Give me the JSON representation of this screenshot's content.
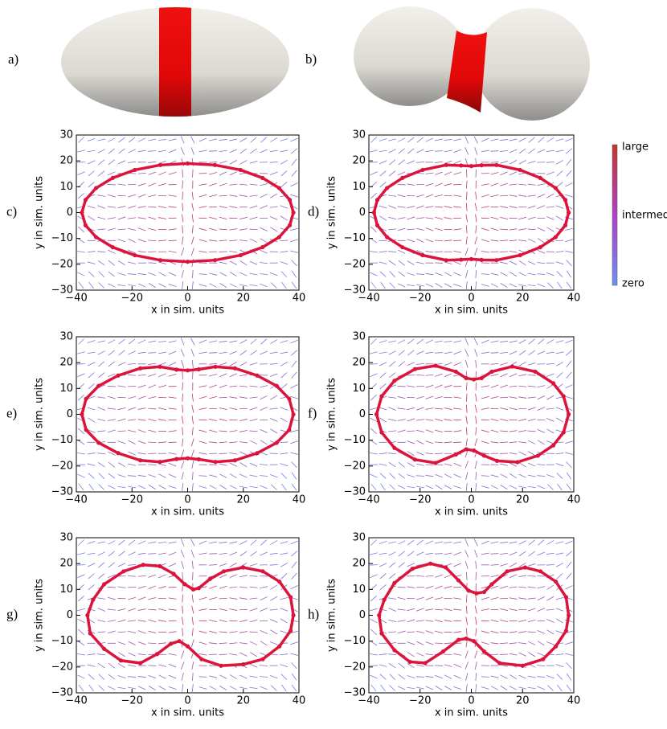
{
  "panels": [
    {
      "label": "a)"
    },
    {
      "label": "b)"
    }
  ],
  "colorbar": {
    "labels": [
      "large",
      "intermediate",
      "zero"
    ]
  },
  "chart_data": [
    {
      "type": "scatter",
      "label": "c)",
      "xlabel": "x in sim. units",
      "ylabel": "y in sim. units",
      "xlim": [
        -40,
        40
      ],
      "ylim": [
        -30,
        30
      ],
      "xticks": [
        {
          "value": -40,
          "label": "−40"
        },
        {
          "value": -20,
          "label": "−20"
        },
        0,
        20,
        40
      ],
      "yticks": [
        {
          "value": -30,
          "label": "−30"
        },
        {
          "value": -20,
          "label": "−20"
        },
        {
          "value": -10,
          "label": "−10"
        },
        0,
        10,
        20,
        30
      ],
      "series": [
        {
          "color": "#dc143c",
          "x": [
            38,
            36.7,
            32.9,
            26.9,
            19,
            9.8,
            0,
            -9.8,
            -19,
            -26.9,
            -32.9,
            -36.7,
            -38,
            -36.7,
            -32.9,
            -26.9,
            -19,
            -9.8,
            0,
            9.8,
            19,
            26.9,
            32.9,
            36.7
          ],
          "y": [
            0,
            4.9,
            9.5,
            13.4,
            16.5,
            18.4,
            19,
            18.4,
            16.5,
            13.4,
            9.5,
            4.9,
            0,
            -4.9,
            -9.5,
            -13.4,
            -16.5,
            -18.4,
            -19,
            -18.4,
            -16.5,
            -13.4,
            -9.5,
            -4.9
          ]
        }
      ]
    },
    {
      "type": "scatter",
      "label": "d)",
      "xlabel": "x in sim. units",
      "ylabel": "y in sim. units",
      "xlim": [
        -40,
        40
      ],
      "ylim": [
        -30,
        30
      ],
      "xticks": [
        {
          "value": -40,
          "label": "−40"
        },
        {
          "value": -20,
          "label": "−20"
        },
        0,
        20,
        40
      ],
      "yticks": [
        {
          "value": -30,
          "label": "−30"
        },
        {
          "value": -20,
          "label": "−20"
        },
        {
          "value": -10,
          "label": "−10"
        },
        0,
        10,
        20,
        30
      ],
      "series": [
        {
          "color": "#dc143c",
          "x": [
            38,
            36.7,
            32.9,
            26.9,
            19,
            9.8,
            4,
            0,
            -4,
            -9.8,
            -19,
            -26.9,
            -32.9,
            -36.7,
            -38,
            -36.7,
            -32.9,
            -26.9,
            -19,
            -9.8,
            -4,
            0,
            4,
            9.8,
            19,
            26.9,
            32.9,
            36.7
          ],
          "y": [
            0,
            4.9,
            9.5,
            13.4,
            16.5,
            18.4,
            18.3,
            18,
            18.2,
            18.4,
            16.5,
            13.4,
            9.5,
            4.9,
            0,
            -4.9,
            -9.5,
            -13.4,
            -16.5,
            -18.4,
            -18.2,
            -18,
            -18.3,
            -18.4,
            -16.5,
            -13.4,
            -9.5,
            -4.9
          ]
        }
      ]
    },
    {
      "type": "scatter",
      "label": "e)",
      "xlabel": "x in sim. units",
      "ylabel": "y in sim. units",
      "xlim": [
        -40,
        40
      ],
      "ylim": [
        -30,
        30
      ],
      "xticks": [
        {
          "value": -40,
          "label": "−40"
        },
        {
          "value": -20,
          "label": "−20"
        },
        0,
        20,
        40
      ],
      "yticks": [
        {
          "value": -30,
          "label": "−30"
        },
        {
          "value": -20,
          "label": "−20"
        },
        {
          "value": -10,
          "label": "−10"
        },
        0,
        10,
        20,
        30
      ],
      "series": [
        {
          "color": "#dc143c",
          "x": [
            38,
            36.5,
            32,
            25,
            17,
            10,
            4,
            0,
            -4,
            -10,
            -17,
            -25,
            -32,
            -36.5,
            -38,
            -36.5,
            -32,
            -25,
            -17,
            -10,
            -4,
            0,
            4,
            10,
            17,
            25,
            32,
            36.5
          ],
          "y": [
            0,
            6,
            11,
            15,
            17.8,
            18.4,
            17.4,
            17,
            17.3,
            18.4,
            17.8,
            15,
            11,
            6,
            0,
            -6,
            -11,
            -15,
            -17.8,
            -18.4,
            -17.3,
            -17,
            -17.4,
            -18.4,
            -17.8,
            -15,
            -11,
            -6
          ]
        }
      ]
    },
    {
      "type": "scatter",
      "label": "f)",
      "xlabel": "x in sim. units",
      "ylabel": "y in sim. units",
      "xlim": [
        -40,
        40
      ],
      "ylim": [
        -30,
        30
      ],
      "xticks": [
        {
          "value": -40,
          "label": "−40"
        },
        {
          "value": -20,
          "label": "−20"
        },
        0,
        20,
        40
      ],
      "yticks": [
        {
          "value": -30,
          "label": "−30"
        },
        {
          "value": -20,
          "label": "−20"
        },
        {
          "value": -10,
          "label": "−10"
        },
        0,
        10,
        20,
        30
      ],
      "series": [
        {
          "color": "#dc143c",
          "x": [
            38,
            36,
            32,
            25,
            16,
            8,
            4,
            1,
            -2,
            -6,
            -14,
            -22,
            -30,
            -35,
            -37,
            -35,
            -30,
            -22,
            -14,
            -6,
            -2,
            1,
            5,
            10,
            18,
            26,
            32,
            36
          ],
          "y": [
            0,
            7,
            12,
            16.5,
            18.5,
            16.5,
            14,
            13.5,
            14,
            16.5,
            18.8,
            17.5,
            13,
            7,
            0,
            -7,
            -13,
            -17.5,
            -18.8,
            -15.5,
            -13.5,
            -14,
            -16,
            -18,
            -18.5,
            -16,
            -12,
            -7
          ]
        }
      ]
    },
    {
      "type": "scatter",
      "label": "g)",
      "xlabel": "x in sim. units",
      "ylabel": "y in sim. units",
      "xlim": [
        -40,
        40
      ],
      "ylim": [
        -30,
        30
      ],
      "xticks": [
        {
          "value": -40,
          "label": "−40"
        },
        {
          "value": -20,
          "label": "−20"
        },
        0,
        20,
        40
      ],
      "yticks": [
        {
          "value": -30,
          "label": "−30"
        },
        {
          "value": -20,
          "label": "−20"
        },
        {
          "value": -10,
          "label": "−10"
        },
        0,
        10,
        20,
        30
      ],
      "series": [
        {
          "color": "#dc143c",
          "x": [
            38,
            37,
            33,
            27,
            20,
            13,
            8,
            4,
            2,
            -1,
            -5,
            -10,
            -16,
            -23,
            -30,
            -34,
            -36,
            -35,
            -30,
            -24,
            -17,
            -11,
            -6,
            -3,
            0,
            5,
            12,
            20,
            27,
            33,
            37
          ],
          "y": [
            0,
            7,
            13,
            17,
            18.5,
            17,
            14,
            10.5,
            10,
            12,
            16,
            19,
            19.5,
            17,
            12,
            6,
            0,
            -7,
            -13,
            -17.5,
            -18.5,
            -15,
            -11,
            -10,
            -12,
            -17,
            -19.5,
            -19,
            -17,
            -12,
            -6
          ]
        }
      ]
    },
    {
      "type": "scatter",
      "label": "h)",
      "xlabel": "x in sim. units",
      "ylabel": "y in sim. units",
      "xlim": [
        -40,
        40
      ],
      "ylim": [
        -30,
        30
      ],
      "xticks": [
        {
          "value": -40,
          "label": "−40"
        },
        {
          "value": -20,
          "label": "−20"
        },
        0,
        20,
        40
      ],
      "yticks": [
        {
          "value": -30,
          "label": "−30"
        },
        {
          "value": -20,
          "label": "−20"
        },
        {
          "value": -10,
          "label": "−10"
        },
        0,
        10,
        20,
        30
      ],
      "series": [
        {
          "color": "#dc143c",
          "x": [
            38,
            37,
            33,
            27,
            21,
            14,
            8,
            5,
            2,
            -1,
            -5,
            -10,
            -16,
            -23,
            -30,
            -34,
            -36,
            -35,
            -30,
            -24,
            -18,
            -11,
            -5,
            -2,
            1,
            5,
            11,
            20,
            28,
            33,
            37
          ],
          "y": [
            0,
            7,
            13,
            17,
            18.5,
            17,
            12,
            9,
            8.5,
            9.5,
            13.5,
            18.5,
            20,
            18,
            12.5,
            6,
            0,
            -7,
            -13.5,
            -18,
            -18.5,
            -14,
            -9.5,
            -9,
            -10,
            -14,
            -18.5,
            -19.5,
            -17,
            -12,
            -6
          ]
        }
      ]
    }
  ]
}
